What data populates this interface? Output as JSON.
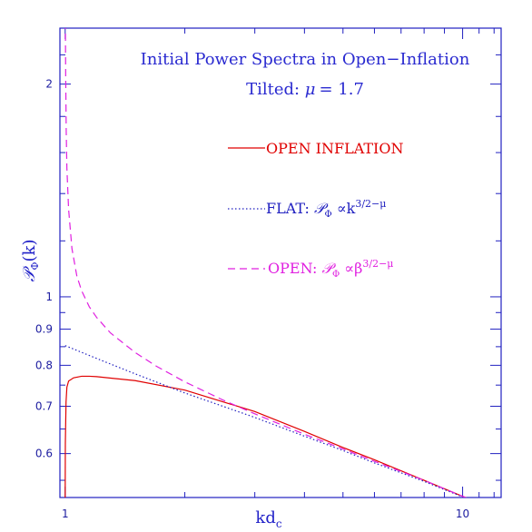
{
  "chart_data": {
    "type": "line",
    "title": "Initial Power Spectra in Open−Inflation",
    "subtitle_prefix": "Tilted: ",
    "subtitle_symbol": "μ",
    "subtitle_value": "= 1.7",
    "xlabel_main": "kd",
    "xlabel_sub": "c",
    "ylabel_main": "𝒫",
    "ylabel_sub": "Φ",
    "ylabel_rest": "(k)",
    "x_scale": "log",
    "y_scale": "log",
    "xlim": [
      0.97,
      12.5
    ],
    "ylim": [
      0.52,
      2.4
    ],
    "x_ticks": [
      {
        "value": 1,
        "label": "1"
      },
      {
        "value": 10,
        "label": "10"
      }
    ],
    "y_ticks": [
      {
        "value": 0.6,
        "label": "0.6"
      },
      {
        "value": 0.7,
        "label": "0.7"
      },
      {
        "value": 0.8,
        "label": "0.8"
      },
      {
        "value": 0.9,
        "label": "0.9"
      },
      {
        "value": 1,
        "label": "1"
      },
      {
        "value": 2,
        "label": "2"
      }
    ],
    "legend_placement": "upper-right",
    "series": [
      {
        "name": "OPEN INFLATION",
        "color": "#e00000",
        "dash": "solid",
        "x": [
          1.0,
          1.001,
          1.005,
          1.01,
          1.02,
          1.05,
          1.1,
          1.15,
          1.2,
          1.5,
          2,
          3,
          4,
          5,
          6,
          8,
          10,
          12
        ],
        "y": [
          0.52,
          0.62,
          0.71,
          0.745,
          0.76,
          0.768,
          0.772,
          0.772,
          0.771,
          0.761,
          0.738,
          0.688,
          0.645,
          0.612,
          0.588,
          0.55,
          0.522,
          0.5
        ]
      },
      {
        "name_prefix": "FLAT: ",
        "name_symbol": "𝒫",
        "name_sub": "Φ",
        "name_prop": " ∝k",
        "name_sup": "3/2−μ",
        "color": "#2020c0",
        "dash": "dotted",
        "x": [
          1,
          1.2,
          1.5,
          2,
          3,
          4,
          5,
          6,
          8,
          10,
          12
        ],
        "y": [
          0.853,
          0.818,
          0.778,
          0.731,
          0.675,
          0.635,
          0.606,
          0.582,
          0.548,
          0.521,
          0.5
        ]
      },
      {
        "name_prefix": "OPEN: ",
        "name_symbol": "𝒫",
        "name_sub": "Φ",
        "name_prop": " ∝β",
        "name_sup": "3/2−μ",
        "color": "#e020e0",
        "dash": "dashed",
        "x": [
          1.001,
          1.003,
          1.006,
          1.01,
          1.02,
          1.04,
          1.07,
          1.1,
          1.15,
          1.2,
          1.3,
          1.5,
          1.7,
          2,
          2.5,
          3,
          4,
          5,
          6,
          8,
          10,
          12
        ],
        "y": [
          2.45,
          2.05,
          1.72,
          1.52,
          1.33,
          1.17,
          1.07,
          1.02,
          0.968,
          0.935,
          0.889,
          0.834,
          0.797,
          0.758,
          0.714,
          0.683,
          0.639,
          0.609,
          0.585,
          0.55,
          0.522,
          0.5
        ]
      }
    ]
  }
}
